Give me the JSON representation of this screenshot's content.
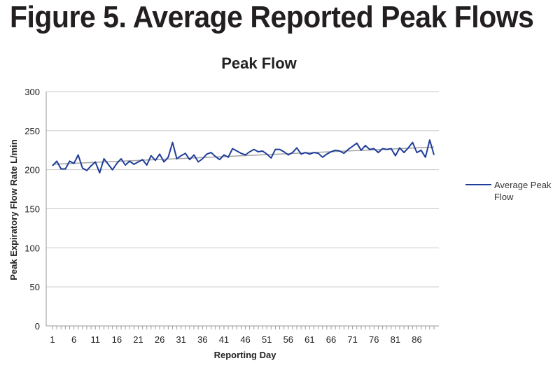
{
  "figure_heading": "Figure 5. Average Reported Peak Flows",
  "chart_data": {
    "type": "line",
    "title": "Peak Flow",
    "xlabel": "Reporting Day",
    "ylabel": "Peak Expiratory Flow Rate L/min",
    "ylim": [
      0,
      300
    ],
    "y_ticks": [
      0,
      50,
      100,
      150,
      200,
      250,
      300
    ],
    "xlim": [
      1,
      90
    ],
    "x_ticks": [
      1,
      6,
      11,
      16,
      21,
      26,
      31,
      36,
      41,
      46,
      51,
      56,
      61,
      66,
      71,
      76,
      81,
      86
    ],
    "grid": "horizontal",
    "legend": "right",
    "series": [
      {
        "name": "Average Peak Flow",
        "color": "#1f3d99",
        "x": [
          1,
          2,
          3,
          4,
          5,
          6,
          7,
          8,
          9,
          10,
          11,
          12,
          13,
          14,
          15,
          16,
          17,
          18,
          19,
          20,
          21,
          22,
          23,
          24,
          25,
          26,
          27,
          28,
          29,
          30,
          31,
          32,
          33,
          34,
          35,
          36,
          37,
          38,
          39,
          40,
          41,
          42,
          43,
          44,
          45,
          46,
          47,
          48,
          49,
          50,
          51,
          52,
          53,
          54,
          55,
          56,
          57,
          58,
          59,
          60,
          61,
          62,
          63,
          64,
          65,
          66,
          67,
          68,
          69,
          70,
          71,
          72,
          73,
          74,
          75,
          76,
          77,
          78,
          79,
          80,
          81,
          82,
          83,
          84,
          85,
          86,
          87,
          88,
          89,
          90
        ],
        "values": [
          205,
          211,
          201,
          201,
          211,
          208,
          219,
          202,
          199,
          205,
          210,
          196,
          214,
          207,
          200,
          208,
          214,
          206,
          211,
          207,
          210,
          213,
          206,
          218,
          212,
          220,
          210,
          216,
          235,
          214,
          218,
          221,
          213,
          219,
          210,
          214,
          220,
          222,
          217,
          213,
          219,
          216,
          227,
          224,
          221,
          219,
          223,
          226,
          223,
          224,
          220,
          215,
          226,
          226,
          223,
          219,
          222,
          228,
          220,
          222,
          220,
          222,
          221,
          216,
          220,
          223,
          225,
          224,
          221,
          226,
          230,
          234,
          225,
          231,
          226,
          227,
          222,
          227,
          226,
          227,
          218,
          228,
          222,
          228,
          235,
          222,
          225,
          216,
          238,
          219
        ]
      },
      {
        "name": "",
        "color": "#a3a3a3",
        "role": "trendline",
        "x": [
          1,
          90
        ],
        "values": [
          207,
          229
        ]
      }
    ]
  }
}
